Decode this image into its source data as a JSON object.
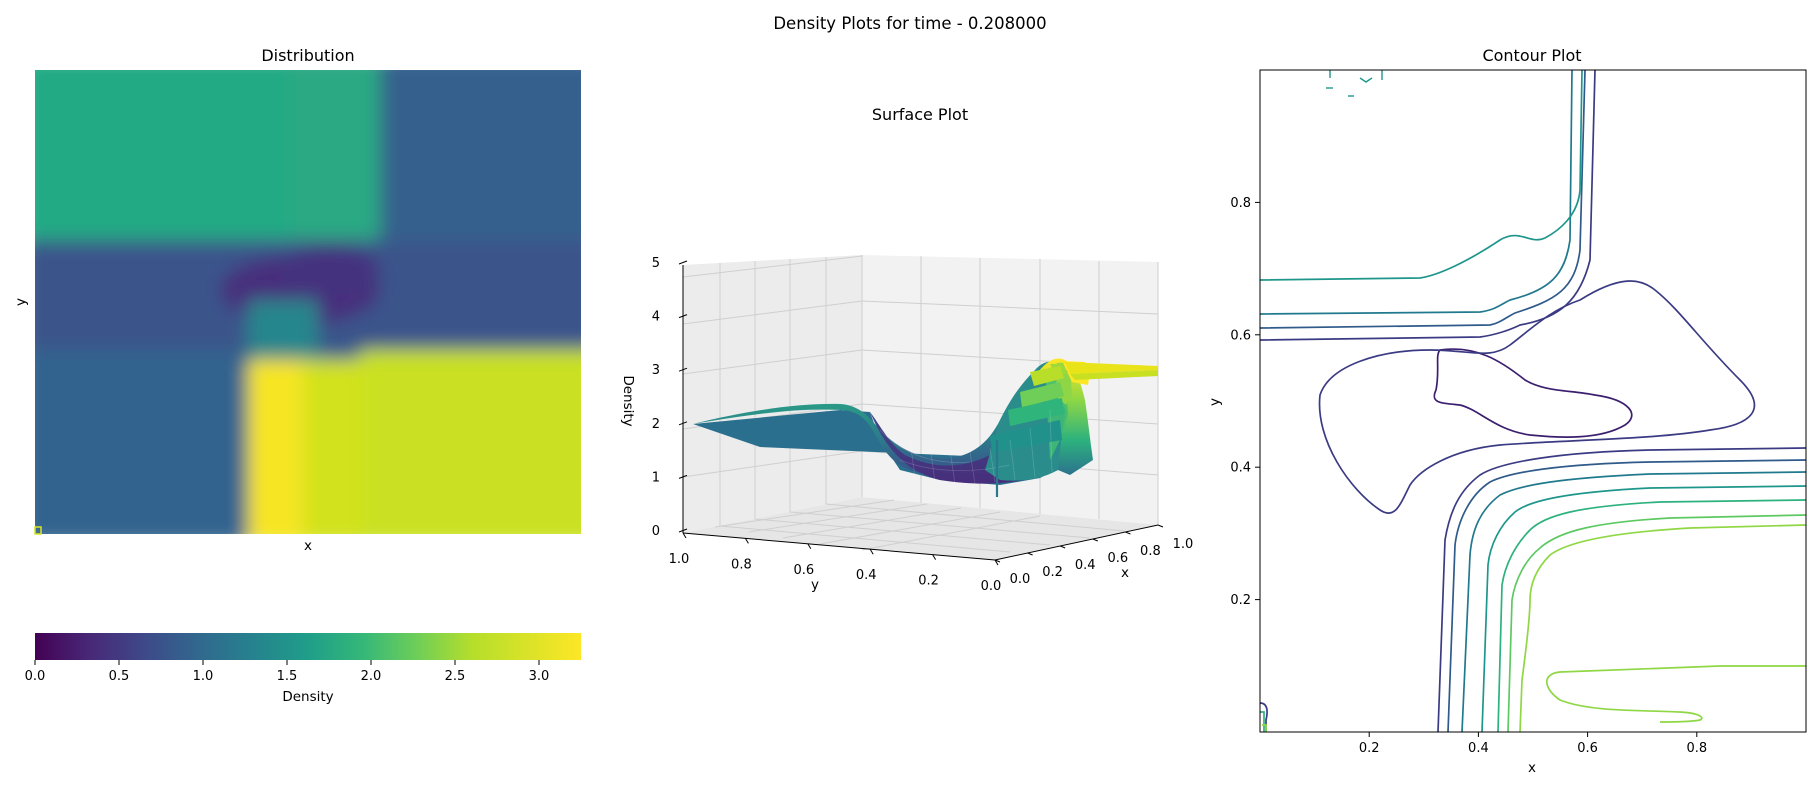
{
  "suptitle": "Density Plots for time - 0.208000",
  "chart_data": [
    {
      "type": "heatmap",
      "title": "Distribution",
      "xlabel": "x",
      "ylabel": "y",
      "colormap": "viridis",
      "regions": [
        {
          "name": "upper-left",
          "density": 1.95
        },
        {
          "name": "upper-right",
          "density": 1.2
        },
        {
          "name": "middle-band",
          "density": 1.2
        },
        {
          "name": "low-spot",
          "density": 0.6
        },
        {
          "name": "lower-left",
          "density": 1.2
        },
        {
          "name": "lower-right",
          "density": 2.95
        },
        {
          "name": "lower-right-peak",
          "density": 3.25
        }
      ],
      "colorbar": {
        "label": "Density",
        "range": [
          0.0,
          3.25
        ],
        "ticks": [
          "0.0",
          "0.5",
          "1.0",
          "1.5",
          "2.0",
          "2.5",
          "3.0"
        ]
      }
    },
    {
      "type": "surface",
      "title": "Surface Plot",
      "xlabel": "x",
      "ylabel": "y",
      "zlabel": "Density",
      "xticks": [
        "0.0",
        "0.2",
        "0.4",
        "0.6",
        "0.8",
        "1.0"
      ],
      "yticks": [
        "1.0",
        "0.8",
        "0.6",
        "0.4",
        "0.2",
        "0.0"
      ],
      "zticks": [
        "0",
        "1",
        "2",
        "3",
        "4",
        "5"
      ],
      "zlim": [
        0,
        5
      ],
      "levels": {
        "plateau_left": 2.0,
        "trough": 0.6,
        "plateau_right": 3.2
      }
    },
    {
      "type": "contour",
      "title": "Contour Plot",
      "xlabel": "x",
      "ylabel": "y",
      "xticks": [
        "0.2",
        "0.4",
        "0.6",
        "0.8"
      ],
      "yticks": [
        "0.2",
        "0.4",
        "0.6",
        "0.8"
      ],
      "xlim": [
        0.0,
        1.0
      ],
      "ylim": [
        0.0,
        1.0
      ],
      "contour_levels": [
        {
          "level": 0.6,
          "color": "#3b1f6e"
        },
        {
          "level": 0.9,
          "color": "#3b3b84"
        },
        {
          "level": 1.2,
          "color": "#2f5a8a"
        },
        {
          "level": 1.5,
          "color": "#21798d"
        },
        {
          "level": 1.8,
          "color": "#1f968b"
        },
        {
          "level": 2.1,
          "color": "#2db27d"
        },
        {
          "level": 2.4,
          "color": "#5ec962"
        },
        {
          "level": 2.7,
          "color": "#8fd744"
        }
      ]
    }
  ]
}
